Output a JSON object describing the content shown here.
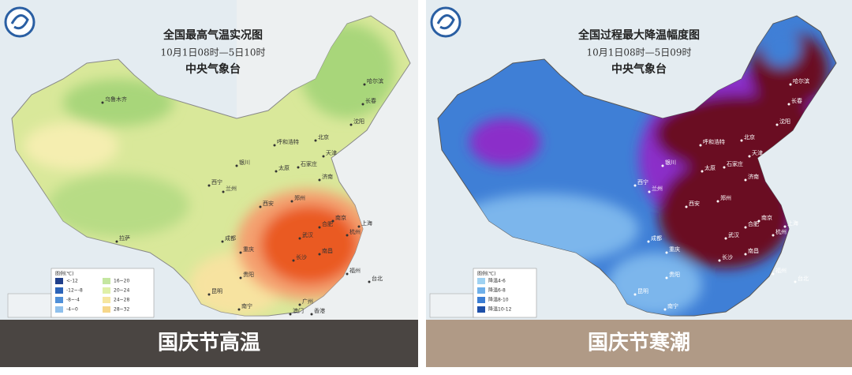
{
  "left_map": {
    "title": "全国最高气温实况图",
    "period": "10月1日08时—5日10时",
    "source": "中央气象台",
    "legend_title": "图例(℃)",
    "legend": [
      "<-12",
      "-12~-8",
      "-8~-4",
      "-4~0",
      "16~20",
      "20~24",
      "24~28",
      "28~32"
    ],
    "cities": [
      "乌鲁木齐",
      "哈尔滨",
      "长春",
      "沈阳",
      "北京",
      "呼和浩特",
      "天津",
      "银川",
      "太原",
      "石家庄",
      "济南",
      "西宁",
      "兰州",
      "郑州",
      "西安",
      "南京",
      "上海",
      "合肥",
      "武汉",
      "杭州",
      "成都",
      "重庆",
      "长沙",
      "南昌",
      "拉萨",
      "贵阳",
      "福州",
      "台北",
      "昆明",
      "南宁",
      "广州",
      "香港",
      "澳门"
    ],
    "caption": "国庆节高温"
  },
  "right_map": {
    "title": "全国过程最大降温幅度图",
    "period": "10月1日08时—5日09时",
    "source": "中央气象台",
    "legend_title": "图例(℃)",
    "legend": [
      "降温4-6",
      "降温6-8",
      "降温8-10",
      "降温10-12"
    ],
    "cities": [
      "哈尔滨",
      "长春",
      "沈阳",
      "北京",
      "呼和浩特",
      "天津",
      "银川",
      "太原",
      "石家庄",
      "济南",
      "西宁",
      "兰州",
      "郑州",
      "西安",
      "南京",
      "上海",
      "合肥",
      "武汉",
      "杭州",
      "成都",
      "重庆",
      "长沙",
      "南昌",
      "贵阳",
      "福州",
      "台北",
      "昆明",
      "南宁"
    ],
    "caption": "国庆节寒潮"
  }
}
